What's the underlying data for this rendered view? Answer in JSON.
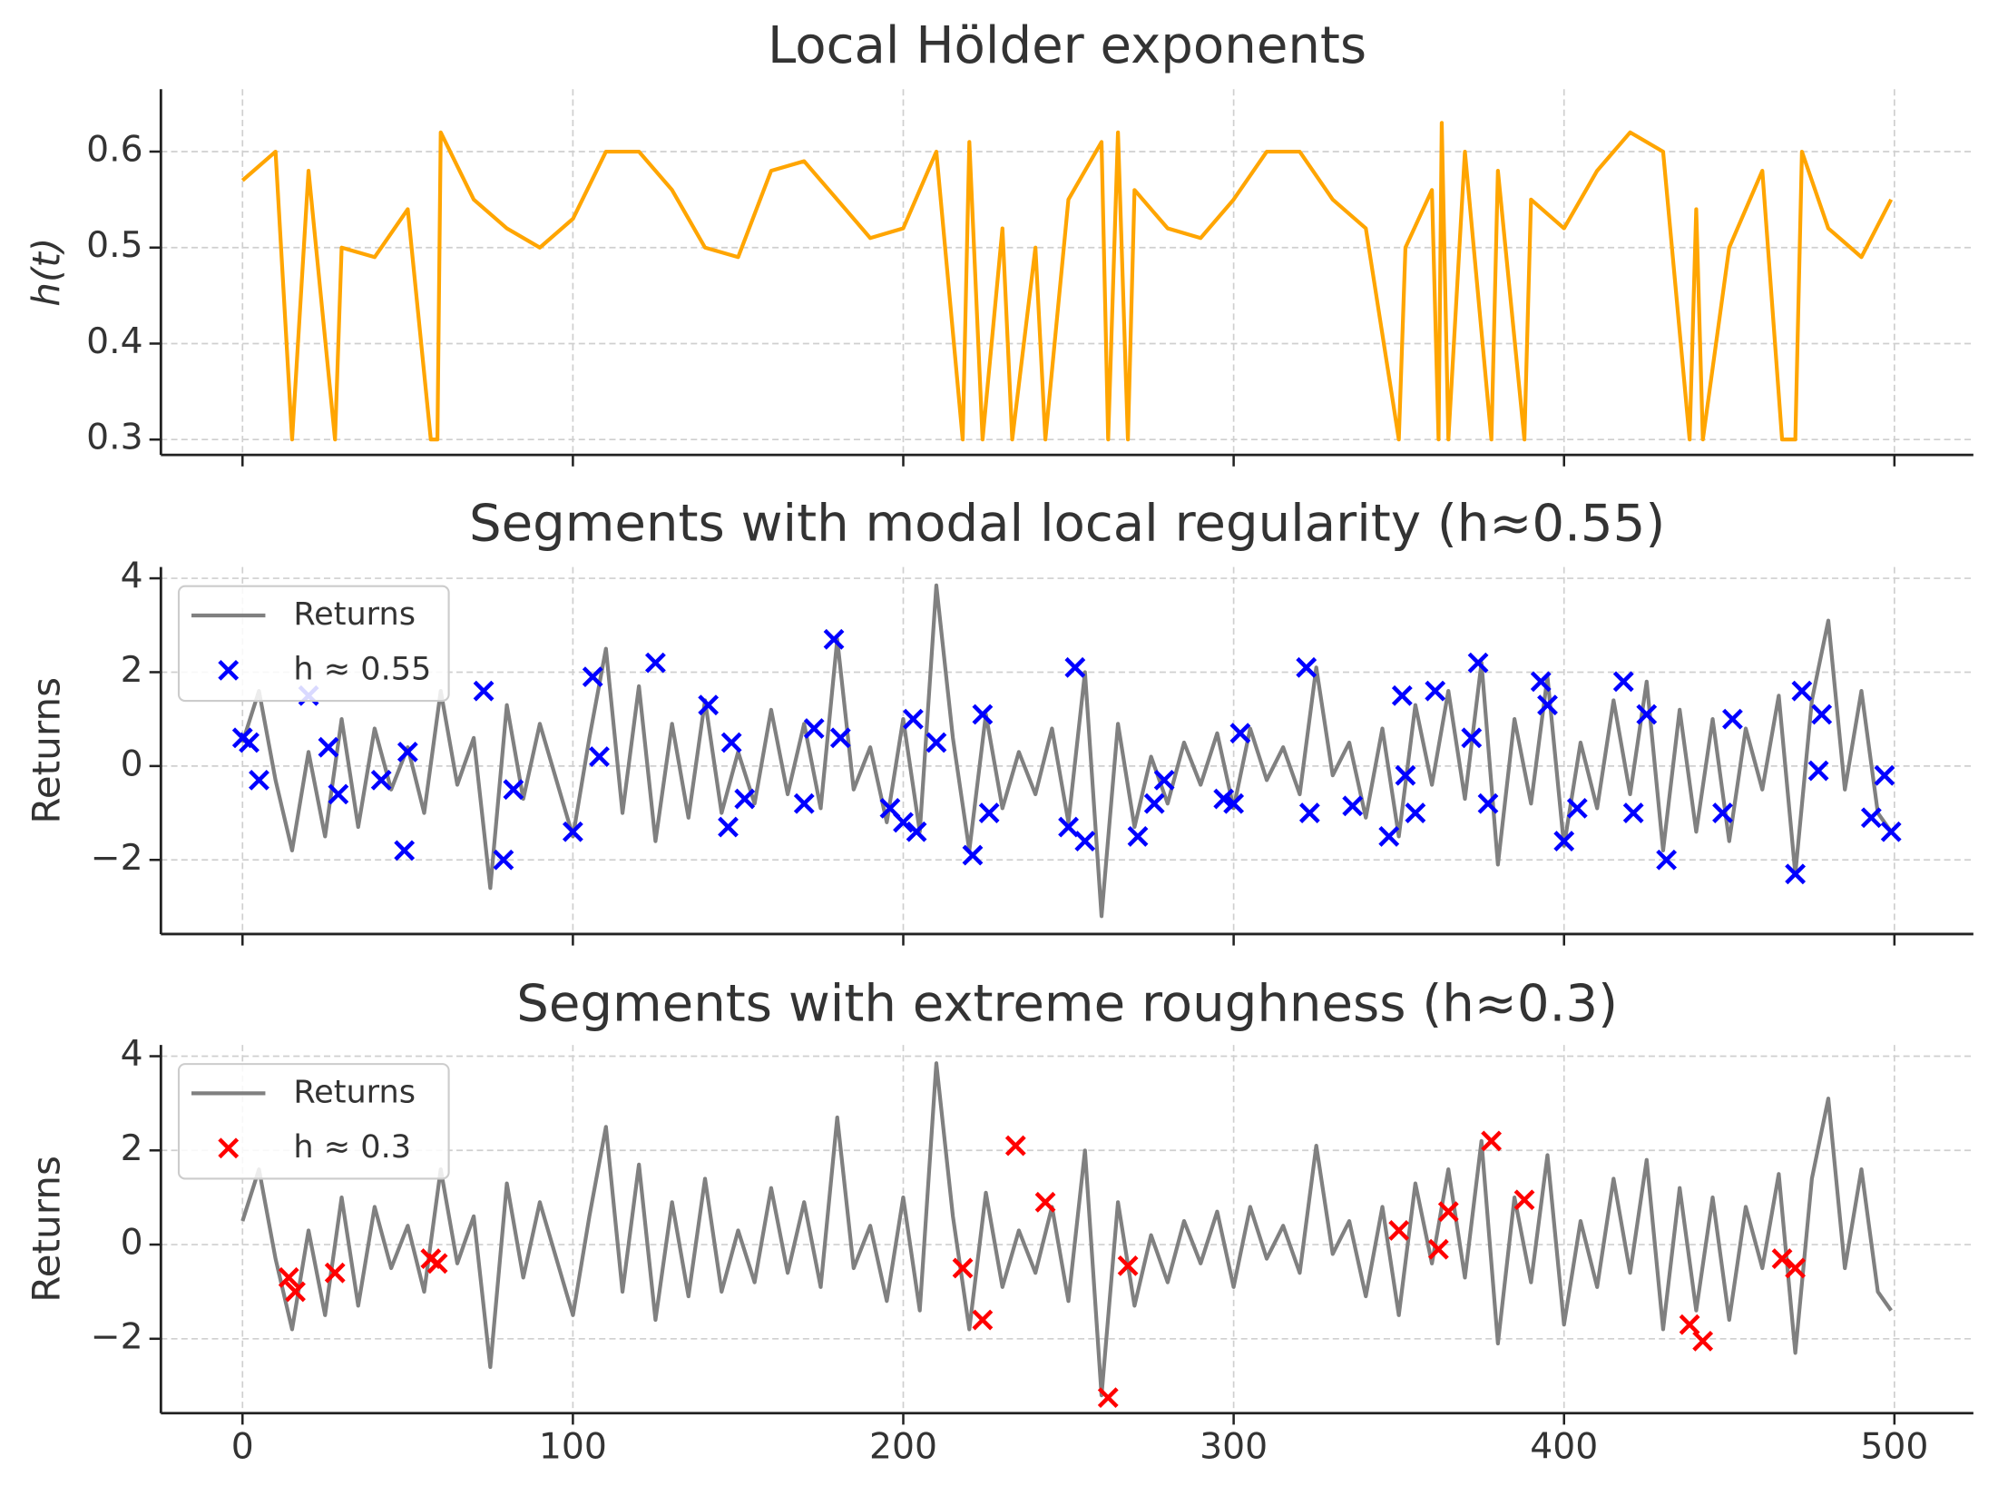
{
  "chart_data": [
    {
      "type": "line",
      "title": "Local Hölder exponents",
      "ylabel": "h(t)",
      "xlim": [
        -24.7,
        523.9
      ],
      "ylim": [
        0.284,
        0.665
      ],
      "yticks": [
        0.3,
        0.4,
        0.5,
        0.6
      ],
      "grid": true,
      "series": [
        {
          "style": "line",
          "color": "#ffa500",
          "x": [
            0,
            10,
            15,
            20,
            28,
            30,
            40,
            50,
            57,
            59,
            60,
            70,
            80,
            90,
            100,
            110,
            120,
            130,
            140,
            150,
            160,
            170,
            180,
            190,
            200,
            210,
            218,
            220,
            224,
            230,
            233,
            240,
            243,
            250,
            260,
            262,
            265,
            268,
            270,
            280,
            290,
            300,
            310,
            320,
            330,
            340,
            350,
            352,
            360,
            362,
            363,
            365,
            370,
            378,
            380,
            388,
            390,
            400,
            410,
            420,
            430,
            438,
            440,
            442,
            450,
            460,
            466,
            470,
            472,
            480,
            490,
            499
          ],
          "values": [
            0.57,
            0.6,
            0.3,
            0.58,
            0.3,
            0.5,
            0.49,
            0.54,
            0.3,
            0.3,
            0.62,
            0.55,
            0.52,
            0.5,
            0.53,
            0.6,
            0.6,
            0.56,
            0.5,
            0.49,
            0.58,
            0.59,
            0.55,
            0.51,
            0.52,
            0.6,
            0.3,
            0.61,
            0.3,
            0.52,
            0.3,
            0.5,
            0.3,
            0.55,
            0.61,
            0.3,
            0.62,
            0.3,
            0.56,
            0.52,
            0.51,
            0.55,
            0.6,
            0.6,
            0.55,
            0.52,
            0.3,
            0.5,
            0.56,
            0.3,
            0.63,
            0.3,
            0.6,
            0.3,
            0.58,
            0.3,
            0.55,
            0.52,
            0.58,
            0.62,
            0.6,
            0.3,
            0.54,
            0.3,
            0.5,
            0.58,
            0.3,
            0.3,
            0.6,
            0.52,
            0.49,
            0.55
          ]
        }
      ]
    },
    {
      "type": "line",
      "title": "Segments with modal local regularity (h≈0.55)",
      "ylabel": "Returns",
      "xlim": [
        -24.7,
        523.9
      ],
      "ylim": [
        -3.58,
        4.24
      ],
      "yticks": [
        {
          "value": -2,
          "label": "−2"
        },
        0,
        2,
        4
      ],
      "grid": true,
      "legend": "upper left",
      "series": [
        {
          "name": "Returns",
          "style": "line",
          "color": "#808080",
          "x": [
            0,
            5,
            10,
            15,
            20,
            25,
            30,
            35,
            40,
            45,
            50,
            55,
            60,
            65,
            70,
            75,
            80,
            85,
            90,
            95,
            100,
            105,
            110,
            115,
            120,
            125,
            130,
            135,
            140,
            145,
            150,
            155,
            160,
            165,
            170,
            175,
            180,
            185,
            190,
            195,
            200,
            205,
            210,
            215,
            220,
            225,
            230,
            235,
            240,
            245,
            250,
            255,
            260,
            265,
            270,
            275,
            280,
            285,
            290,
            295,
            300,
            305,
            310,
            315,
            320,
            325,
            330,
            335,
            340,
            345,
            350,
            355,
            360,
            365,
            370,
            375,
            380,
            385,
            390,
            395,
            400,
            405,
            410,
            415,
            420,
            425,
            430,
            435,
            440,
            445,
            450,
            455,
            460,
            465,
            470,
            475,
            480,
            485,
            490,
            495,
            499
          ],
          "values": [
            0.5,
            1.6,
            -0.3,
            -1.8,
            0.3,
            -1.5,
            1.0,
            -1.3,
            0.8,
            -0.5,
            0.4,
            -1.0,
            1.6,
            -0.4,
            0.6,
            -2.6,
            1.3,
            -0.7,
            0.9,
            -0.3,
            -1.5,
            0.6,
            2.5,
            -1.0,
            1.7,
            -1.6,
            0.9,
            -1.1,
            1.4,
            -1.0,
            0.3,
            -0.8,
            1.2,
            -0.6,
            0.9,
            -0.9,
            2.7,
            -0.5,
            0.4,
            -1.2,
            1.0,
            -1.4,
            3.85,
            0.6,
            -1.8,
            1.1,
            -0.9,
            0.3,
            -0.6,
            0.8,
            -1.2,
            2.0,
            -3.2,
            0.9,
            -1.3,
            0.2,
            -0.8,
            0.5,
            -0.4,
            0.7,
            -0.9,
            0.8,
            -0.3,
            0.4,
            -0.6,
            2.1,
            -0.2,
            0.5,
            -1.1,
            0.8,
            -1.5,
            1.3,
            -0.4,
            1.6,
            -0.7,
            2.2,
            -2.1,
            1.0,
            -0.8,
            1.9,
            -1.7,
            0.5,
            -0.9,
            1.4,
            -0.6,
            1.8,
            -1.8,
            1.2,
            -1.4,
            1.0,
            -1.6,
            0.8,
            -0.5,
            1.5,
            -2.3,
            1.4,
            3.1,
            -0.5,
            1.6,
            -1.0,
            -1.4
          ]
        },
        {
          "name": "h ≈ 0.55",
          "style": "scatter",
          "color": "#0000ff",
          "x": [
            0,
            2,
            5,
            20,
            26,
            29,
            42,
            49,
            50,
            73,
            79,
            82,
            100,
            106,
            108,
            125,
            141,
            147,
            148,
            152,
            170,
            173,
            179,
            181,
            196,
            200,
            203,
            204,
            210,
            221,
            224,
            226,
            250,
            252,
            255,
            271,
            276,
            279,
            297,
            300,
            302,
            322,
            323,
            336,
            347,
            351,
            352,
            355,
            361,
            372,
            374,
            377,
            393,
            395,
            400,
            404,
            418,
            421,
            425,
            431,
            448,
            451,
            470,
            472,
            477,
            478,
            493,
            497,
            499
          ],
          "values": [
            0.6,
            0.5,
            -0.3,
            1.5,
            0.4,
            -0.6,
            -0.3,
            -1.8,
            0.3,
            1.6,
            -2.0,
            -0.5,
            -1.4,
            1.9,
            0.2,
            2.2,
            1.3,
            -1.3,
            0.5,
            -0.7,
            -0.8,
            0.8,
            2.7,
            0.6,
            -0.9,
            -1.2,
            1.0,
            -1.4,
            0.5,
            -1.9,
            1.1,
            -1.0,
            -1.3,
            2.1,
            -1.6,
            -1.5,
            -0.8,
            -0.3,
            -0.7,
            -0.8,
            0.7,
            2.1,
            -1.0,
            -0.85,
            -1.5,
            1.5,
            -0.2,
            -1.0,
            1.6,
            0.6,
            2.2,
            -0.8,
            1.8,
            1.3,
            -1.6,
            -0.9,
            1.8,
            -1.0,
            1.1,
            -2.0,
            -1.0,
            1.0,
            -2.3,
            1.6,
            -0.1,
            1.1,
            -1.1,
            -0.2,
            -1.4
          ]
        }
      ]
    },
    {
      "type": "line",
      "title": "Segments with extreme roughness (h≈0.3)",
      "ylabel": "Returns",
      "xlim": [
        -24.7,
        523.9
      ],
      "ylim": [
        -3.58,
        4.24
      ],
      "xticks": [
        0,
        100,
        200,
        300,
        400,
        500
      ],
      "yticks": [
        {
          "value": -2,
          "label": "−2"
        },
        0,
        2,
        4
      ],
      "grid": true,
      "legend": "upper left",
      "series": [
        {
          "name": "Returns",
          "style": "line",
          "color": "#808080",
          "x": [
            0,
            5,
            10,
            15,
            20,
            25,
            30,
            35,
            40,
            45,
            50,
            55,
            60,
            65,
            70,
            75,
            80,
            85,
            90,
            95,
            100,
            105,
            110,
            115,
            120,
            125,
            130,
            135,
            140,
            145,
            150,
            155,
            160,
            165,
            170,
            175,
            180,
            185,
            190,
            195,
            200,
            205,
            210,
            215,
            220,
            225,
            230,
            235,
            240,
            245,
            250,
            255,
            260,
            265,
            270,
            275,
            280,
            285,
            290,
            295,
            300,
            305,
            310,
            315,
            320,
            325,
            330,
            335,
            340,
            345,
            350,
            355,
            360,
            365,
            370,
            375,
            380,
            385,
            390,
            395,
            400,
            405,
            410,
            415,
            420,
            425,
            430,
            435,
            440,
            445,
            450,
            455,
            460,
            465,
            470,
            475,
            480,
            485,
            490,
            495,
            499
          ],
          "values": [
            0.5,
            1.6,
            -0.3,
            -1.8,
            0.3,
            -1.5,
            1.0,
            -1.3,
            0.8,
            -0.5,
            0.4,
            -1.0,
            1.6,
            -0.4,
            0.6,
            -2.6,
            1.3,
            -0.7,
            0.9,
            -0.3,
            -1.5,
            0.6,
            2.5,
            -1.0,
            1.7,
            -1.6,
            0.9,
            -1.1,
            1.4,
            -1.0,
            0.3,
            -0.8,
            1.2,
            -0.6,
            0.9,
            -0.9,
            2.7,
            -0.5,
            0.4,
            -1.2,
            1.0,
            -1.4,
            3.85,
            0.6,
            -1.8,
            1.1,
            -0.9,
            0.3,
            -0.6,
            0.8,
            -1.2,
            2.0,
            -3.2,
            0.9,
            -1.3,
            0.2,
            -0.8,
            0.5,
            -0.4,
            0.7,
            -0.9,
            0.8,
            -0.3,
            0.4,
            -0.6,
            2.1,
            -0.2,
            0.5,
            -1.1,
            0.8,
            -1.5,
            1.3,
            -0.4,
            1.6,
            -0.7,
            2.2,
            -2.1,
            1.0,
            -0.8,
            1.9,
            -1.7,
            0.5,
            -0.9,
            1.4,
            -0.6,
            1.8,
            -1.8,
            1.2,
            -1.4,
            1.0,
            -1.6,
            0.8,
            -0.5,
            1.5,
            -2.3,
            1.4,
            3.1,
            -0.5,
            1.6,
            -1.0,
            -1.4
          ]
        },
        {
          "name": "h ≈ 0.3",
          "style": "scatter",
          "color": "#ff0000",
          "x": [
            14,
            16,
            28,
            57,
            59,
            218,
            224,
            234,
            243,
            262,
            268,
            350,
            362,
            365,
            378,
            388,
            438,
            442,
            466,
            470
          ],
          "values": [
            -0.7,
            -1.0,
            -0.6,
            -0.3,
            -0.4,
            -0.5,
            -1.6,
            2.1,
            0.9,
            -3.25,
            -0.45,
            0.3,
            -0.1,
            0.7,
            2.2,
            0.95,
            -1.7,
            -2.05,
            -0.3,
            -0.5
          ]
        }
      ]
    }
  ]
}
